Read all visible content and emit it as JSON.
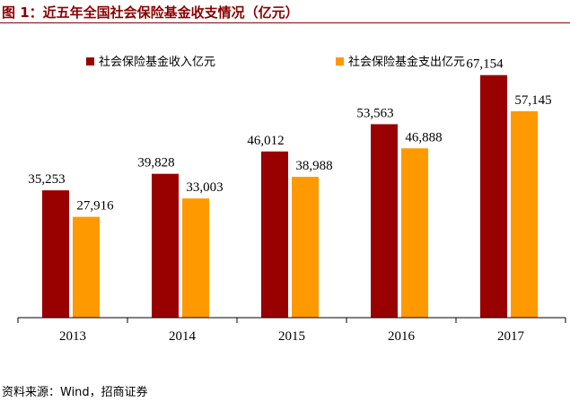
{
  "title": "图 1：近五年全国社会保险基金收支情况（亿元）",
  "source": "资料来源：Wind，招商证券",
  "chart_data": {
    "type": "bar",
    "categories": [
      "2013",
      "2014",
      "2015",
      "2016",
      "2017"
    ],
    "series": [
      {
        "name": "社会保险基金收入亿元",
        "values": [
          35253,
          39828,
          46012,
          53563,
          67154
        ],
        "labels": [
          "35,253",
          "39,828",
          "46,012",
          "53,563",
          "67,154"
        ],
        "color": "#990000"
      },
      {
        "name": "社会保险基金支出亿元",
        "values": [
          27916,
          33003,
          38988,
          46888,
          57145
        ],
        "labels": [
          "27,916",
          "33,003",
          "38,988",
          "46,888",
          "57,145"
        ],
        "color": "#FF9900"
      }
    ],
    "ylim": [
      0,
      80000
    ],
    "legend_position": "top",
    "grid": false
  }
}
